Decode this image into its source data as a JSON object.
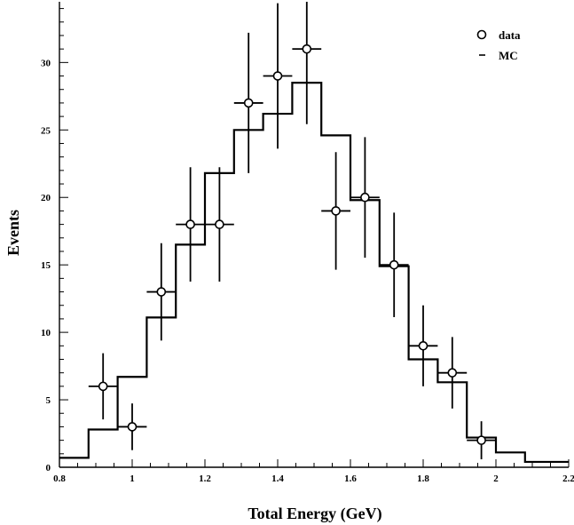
{
  "chart_data": {
    "type": "histogram",
    "title": "",
    "xlabel": "Total Energy (GeV)",
    "ylabel": "Events",
    "xlim": [
      0.8,
      2.2
    ],
    "ylim": [
      0,
      34.5
    ],
    "x_ticks": [
      0.8,
      1,
      1.2,
      1.4,
      1.6,
      1.8,
      2,
      2.2
    ],
    "x_tick_labels": [
      "0.8",
      "1",
      "1.2",
      "1.4",
      "1.6",
      "1.8",
      "2",
      "2.2"
    ],
    "y_ticks": [
      0,
      5,
      10,
      15,
      20,
      25,
      30
    ],
    "y_tick_labels": [
      "0",
      "5",
      "10",
      "15",
      "20",
      "25",
      "30"
    ],
    "legend": {
      "placement": "top-right",
      "entries": [
        {
          "label": "data",
          "marker": "open-circle"
        },
        {
          "label": "MC",
          "marker": "dash"
        }
      ]
    },
    "mc": {
      "name": "MC",
      "bin_edges": [
        0.8,
        0.88,
        0.96,
        1.04,
        1.12,
        1.2,
        1.28,
        1.36,
        1.44,
        1.52,
        1.6,
        1.68,
        1.76,
        1.84,
        1.92,
        2.0,
        2.08,
        2.16,
        2.2
      ],
      "values": [
        0.7,
        2.8,
        6.7,
        11.1,
        16.5,
        21.8,
        25.0,
        26.2,
        28.5,
        24.6,
        19.8,
        14.9,
        8.0,
        6.3,
        2.2,
        1.1,
        0.4,
        0.4
      ]
    },
    "data": {
      "name": "data",
      "points": [
        {
          "x": 0.92,
          "y": 6,
          "yerr": 2.45
        },
        {
          "x": 1.0,
          "y": 3,
          "yerr": 1.73
        },
        {
          "x": 1.08,
          "y": 13,
          "yerr": 3.61
        },
        {
          "x": 1.16,
          "y": 18,
          "yerr": 4.24
        },
        {
          "x": 1.24,
          "y": 18,
          "yerr": 4.24
        },
        {
          "x": 1.32,
          "y": 27,
          "yerr": 5.2
        },
        {
          "x": 1.4,
          "y": 29,
          "yerr": 5.39
        },
        {
          "x": 1.48,
          "y": 31,
          "yerr": 5.57
        },
        {
          "x": 1.56,
          "y": 19,
          "yerr": 4.36
        },
        {
          "x": 1.64,
          "y": 20,
          "yerr": 4.47
        },
        {
          "x": 1.72,
          "y": 15,
          "yerr": 3.87
        },
        {
          "x": 1.8,
          "y": 9,
          "yerr": 3.0
        },
        {
          "x": 1.88,
          "y": 7,
          "yerr": 2.65
        },
        {
          "x": 1.96,
          "y": 2,
          "yerr": 1.41
        }
      ],
      "xerr": 0.04
    }
  }
}
